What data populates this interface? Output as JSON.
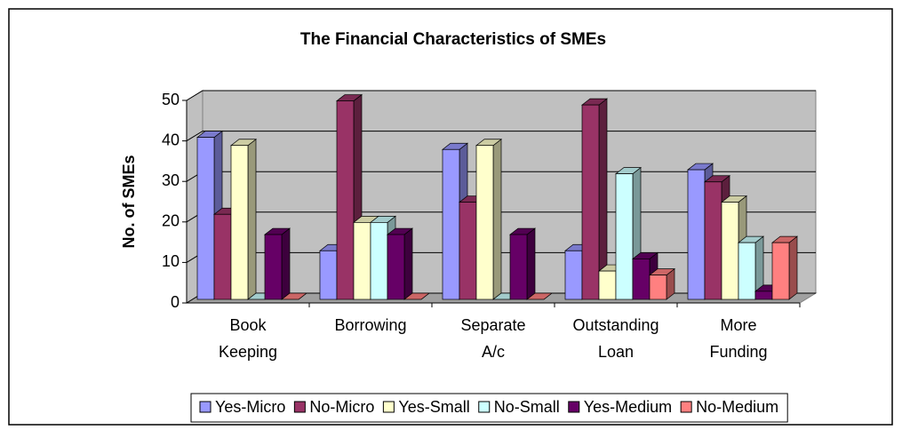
{
  "chart_data": {
    "type": "bar3d",
    "title": "The Financial Characteristics of SMEs",
    "y_label": "No. of SMEs",
    "categories": [
      "Book Keeping",
      "Borrowing",
      "Separate A/c",
      "Outstanding Loan",
      "More Funding"
    ],
    "series": [
      {
        "name": "Yes-Micro",
        "color": "#9999ff",
        "values": [
          40,
          12,
          37,
          12,
          32
        ]
      },
      {
        "name": "No-Micro",
        "color": "#993366",
        "values": [
          21,
          49,
          24,
          48,
          29
        ]
      },
      {
        "name": "Yes-Small",
        "color": "#ffffcc",
        "values": [
          38,
          19,
          38,
          7,
          24
        ]
      },
      {
        "name": "No-Small",
        "color": "#ccffff",
        "values": [
          0,
          19,
          0,
          31,
          14
        ]
      },
      {
        "name": "Yes-Medium",
        "color": "#660066",
        "values": [
          16,
          16,
          16,
          10,
          2
        ]
      },
      {
        "name": "No-Medium",
        "color": "#ff8080",
        "values": [
          0,
          0,
          0,
          6,
          14
        ]
      }
    ],
    "ylim": [
      0,
      50
    ],
    "yticks": [
      0,
      10,
      20,
      30,
      40,
      50
    ],
    "grid": true,
    "legend": "bottom"
  }
}
